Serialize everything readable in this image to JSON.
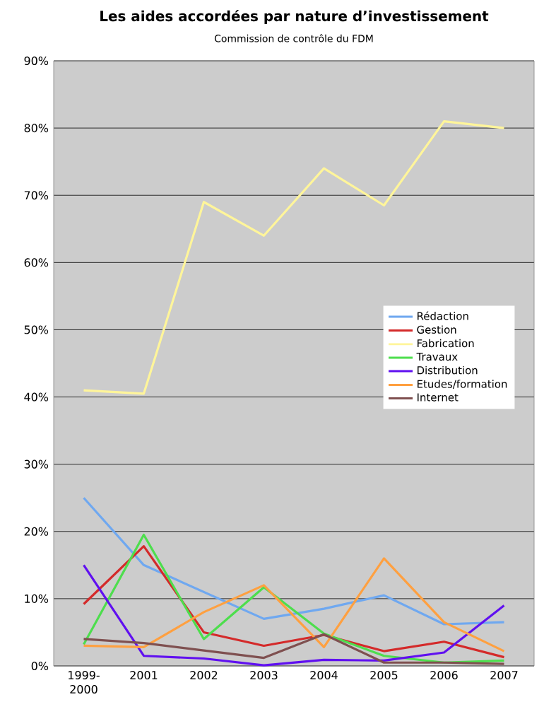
{
  "chart_data": {
    "type": "line",
    "title": "Les aides accordées par nature d’investissement",
    "subtitle": "Commission de contrôle du FDM",
    "categories": [
      "1999-2000",
      "2001",
      "2002",
      "2003",
      "2004",
      "2005",
      "2006",
      "2007"
    ],
    "ylim": [
      0,
      90
    ],
    "yticks": [
      {
        "value": 0,
        "label": "0%"
      },
      {
        "value": 10,
        "label": "10%"
      },
      {
        "value": 20,
        "label": "20%"
      },
      {
        "value": 30,
        "label": "30%"
      },
      {
        "value": 40,
        "label": "40%"
      },
      {
        "value": 50,
        "label": "50%"
      },
      {
        "value": 60,
        "label": "60%"
      },
      {
        "value": 70,
        "label": "70%"
      },
      {
        "value": 80,
        "label": "80%"
      },
      {
        "value": 90,
        "label": "90%"
      }
    ],
    "grid": "y",
    "legend": "right",
    "marker": "none",
    "line_style": "solid",
    "series": [
      {
        "name": "Rédaction",
        "color": "#6fa8f0",
        "values": [
          25,
          15,
          11,
          7,
          8.5,
          10.5,
          6.2,
          6.5
        ]
      },
      {
        "name": "Gestion",
        "color": "#d42a2a",
        "values": [
          9.2,
          17.8,
          5,
          3,
          4.6,
          2.2,
          3.6,
          1.3
        ]
      },
      {
        "name": "Fabrication",
        "color": "#fff59a",
        "values": [
          41,
          40.5,
          69,
          64,
          74,
          68.5,
          81,
          80
        ]
      },
      {
        "name": "Travaux",
        "color": "#4dde4d",
        "values": [
          3.2,
          19.5,
          4,
          11.7,
          4.8,
          1.5,
          0.5,
          0.8
        ]
      },
      {
        "name": "Distribution",
        "color": "#6010f0",
        "values": [
          15,
          1.5,
          1.1,
          0.1,
          0.9,
          0.8,
          2,
          9
        ]
      },
      {
        "name": "Etudes/formation",
        "color": "#ffa040",
        "values": [
          3,
          2.8,
          8,
          12,
          2.8,
          16,
          6.5,
          2.2
        ]
      },
      {
        "name": "Internet",
        "color": "#7f5050",
        "values": [
          4,
          3.4,
          2.3,
          1.2,
          4.7,
          0.5,
          0.5,
          0.3
        ]
      }
    ]
  }
}
